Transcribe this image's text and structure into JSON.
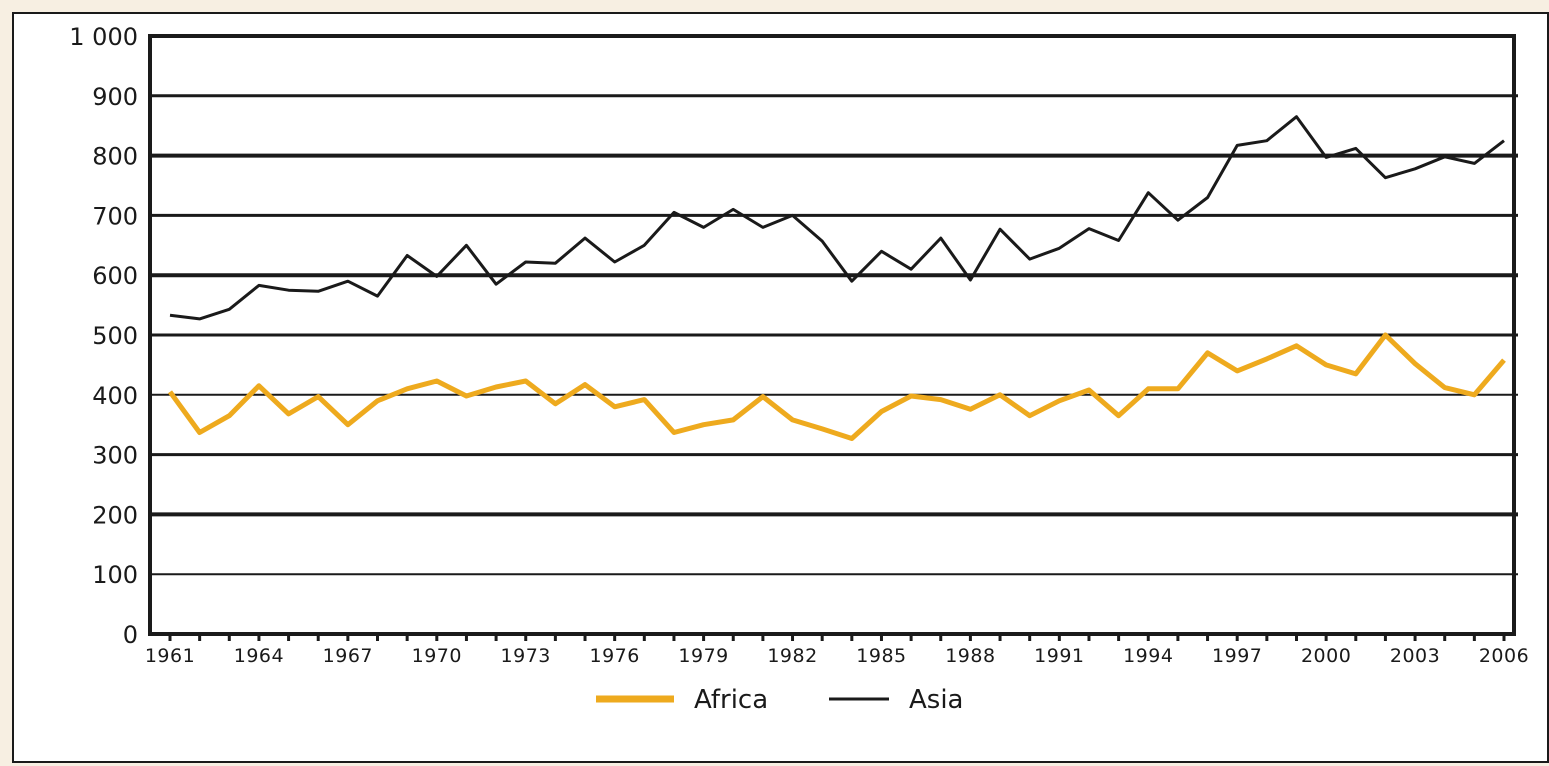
{
  "chart_data": {
    "type": "line",
    "title": "",
    "xlabel": "",
    "ylabel": "",
    "x": [
      1961,
      1962,
      1963,
      1964,
      1965,
      1966,
      1967,
      1968,
      1969,
      1970,
      1971,
      1972,
      1973,
      1974,
      1975,
      1976,
      1977,
      1978,
      1979,
      1980,
      1981,
      1982,
      1983,
      1984,
      1985,
      1986,
      1987,
      1988,
      1989,
      1990,
      1991,
      1992,
      1993,
      1994,
      1995,
      1996,
      1997,
      1998,
      1999,
      2000,
      2001,
      2002,
      2003,
      2004,
      2005,
      2006
    ],
    "xticks": [
      "1961",
      "1964",
      "1967",
      "1970",
      "1973",
      "1976",
      "1979",
      "1982",
      "1985",
      "1988",
      "1991",
      "1994",
      "1997",
      "2000",
      "2003",
      "2006"
    ],
    "yticks": [
      "0",
      "100",
      "200",
      "300",
      "400",
      "500",
      "600",
      "700",
      "800",
      "900",
      "1 000"
    ],
    "ylim": [
      0,
      1000
    ],
    "grid": true,
    "legend_position": "bottom-center",
    "series": [
      {
        "name": "Africa",
        "color": "#eeaa1e",
        "values": [
          405,
          337,
          365,
          415,
          368,
          397,
          350,
          390,
          410,
          423,
          398,
          413,
          423,
          385,
          417,
          380,
          392,
          337,
          350,
          358,
          397,
          358,
          343,
          327,
          372,
          398,
          392,
          376,
          400,
          365,
          390,
          408,
          365,
          410,
          410,
          470,
          440,
          460,
          482,
          450,
          435,
          500,
          452,
          412,
          400,
          458
        ]
      },
      {
        "name": "Asia",
        "color": "#1a1a1a",
        "values": [
          533,
          527,
          543,
          583,
          575,
          573,
          590,
          565,
          633,
          598,
          650,
          585,
          622,
          620,
          662,
          622,
          650,
          705,
          680,
          710,
          680,
          700,
          657,
          590,
          640,
          610,
          662,
          592,
          677,
          627,
          645,
          678,
          658,
          738,
          692,
          730,
          817,
          825,
          865,
          797,
          812,
          763,
          778,
          798,
          787,
          825
        ]
      }
    ]
  }
}
